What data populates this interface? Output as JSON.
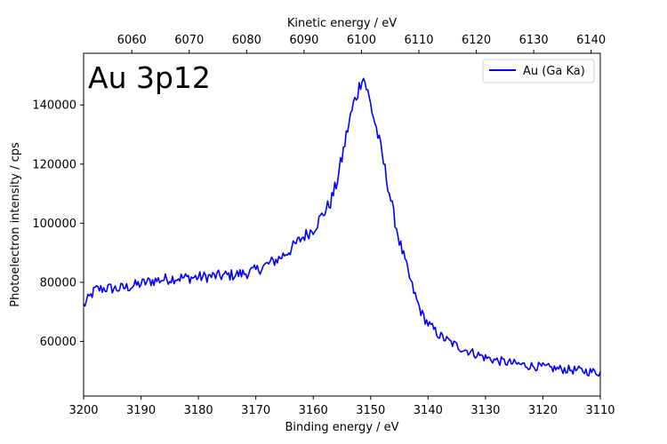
{
  "chart_data": {
    "type": "line",
    "annotation": "Au 3p12",
    "xlabel": "Binding energy / eV",
    "ylabel": "Photoelectron intensity / cps",
    "top_xlabel": "Kinetic energy / eV",
    "xlim": [
      3200,
      3110
    ],
    "ylim": [
      41500,
      157500
    ],
    "top_xlim": [
      6051.6,
      6141.6
    ],
    "x_ticks": [
      3200,
      3190,
      3180,
      3170,
      3160,
      3150,
      3140,
      3130,
      3120,
      3110
    ],
    "y_ticks": [
      60000,
      80000,
      100000,
      120000,
      140000
    ],
    "top_x_ticks": [
      6060,
      6070,
      6080,
      6090,
      6100,
      6110,
      6120,
      6130,
      6140
    ],
    "grid": false,
    "legend_position": "top-right",
    "series": [
      {
        "name": "Au (Ga Ka)",
        "color": "#0000ff",
        "x": [
          3200,
          3198,
          3196,
          3194,
          3192,
          3190,
          3188,
          3186,
          3184,
          3182,
          3180,
          3178,
          3176,
          3174,
          3172,
          3170,
          3168,
          3166,
          3164,
          3162,
          3160,
          3159,
          3158,
          3157,
          3156,
          3155,
          3154,
          3153,
          3152,
          3151.5,
          3151,
          3150,
          3149,
          3148,
          3147,
          3146,
          3145,
          3144,
          3143,
          3142,
          3141,
          3140,
          3138,
          3136,
          3134,
          3132,
          3130,
          3128,
          3126,
          3124,
          3122,
          3120,
          3118,
          3116,
          3114,
          3112,
          3110
        ],
        "values": [
          72000,
          77500,
          78000,
          77800,
          78500,
          79500,
          80500,
          81000,
          81500,
          81500,
          81700,
          82000,
          82200,
          82500,
          83000,
          84000,
          86000,
          88000,
          91000,
          95000,
          98000,
          101000,
          104000,
          107000,
          113000,
          122000,
          132000,
          140000,
          146000,
          150000,
          148000,
          140000,
          132000,
          123000,
          113000,
          103000,
          94000,
          87000,
          80000,
          74000,
          69000,
          66000,
          62000,
          59500,
          57500,
          56000,
          54500,
          53500,
          52800,
          52200,
          51700,
          51300,
          50800,
          50500,
          50200,
          49800,
          49500
        ]
      }
    ]
  }
}
